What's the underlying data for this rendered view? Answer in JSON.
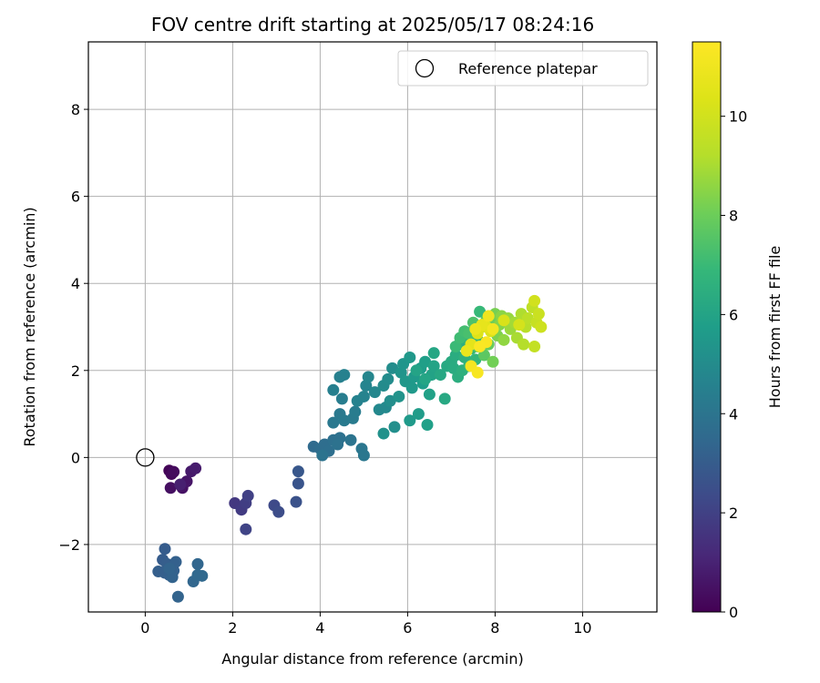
{
  "chart_data": {
    "type": "scatter",
    "title": "FOV centre drift starting at 2025/05/17 08:24:16",
    "xlabel": "Angular distance from reference (arcmin)",
    "ylabel": "Rotation from reference (arcmin)",
    "xlim": [
      -1.3,
      11.7
    ],
    "ylim": [
      -3.55,
      9.55
    ],
    "xticks": [
      0,
      2,
      4,
      6,
      8,
      10
    ],
    "yticks": [
      -2,
      0,
      2,
      4,
      6,
      8
    ],
    "xtick_labels": [
      "0",
      "2",
      "4",
      "6",
      "8",
      "10"
    ],
    "ytick_labels": [
      "−2",
      "0",
      "2",
      "4",
      "6",
      "8"
    ],
    "grid": true,
    "colormap": "viridis",
    "colorbar": {
      "label": "Hours from first FF file",
      "range": [
        0,
        11.5
      ],
      "ticks": [
        0,
        2,
        4,
        6,
        8,
        10
      ],
      "tick_labels": [
        "0",
        "2",
        "4",
        "6",
        "8",
        "10"
      ]
    },
    "legend": {
      "placement": "top-right",
      "label": "Reference platepar"
    },
    "reference_point": {
      "x": 0,
      "y": 0
    },
    "points": [
      {
        "x": 0.55,
        "y": -0.3,
        "h": 0.1
      },
      {
        "x": 0.6,
        "y": -0.38,
        "h": 0.2
      },
      {
        "x": 0.65,
        "y": -0.33,
        "h": 0.3
      },
      {
        "x": 0.58,
        "y": -0.7,
        "h": 0.4
      },
      {
        "x": 0.85,
        "y": -0.7,
        "h": 0.5
      },
      {
        "x": 0.95,
        "y": -0.55,
        "h": 0.6
      },
      {
        "x": 1.05,
        "y": -0.32,
        "h": 0.7
      },
      {
        "x": 1.15,
        "y": -0.25,
        "h": 0.8
      },
      {
        "x": 0.8,
        "y": -0.62,
        "h": 0.9
      },
      {
        "x": 2.05,
        "y": -1.05,
        "h": 1.7
      },
      {
        "x": 2.2,
        "y": -1.2,
        "h": 1.8
      },
      {
        "x": 2.3,
        "y": -1.05,
        "h": 1.9
      },
      {
        "x": 2.35,
        "y": -0.88,
        "h": 2.0
      },
      {
        "x": 2.3,
        "y": -1.65,
        "h": 2.1
      },
      {
        "x": 2.95,
        "y": -1.1,
        "h": 2.3
      },
      {
        "x": 3.05,
        "y": -1.25,
        "h": 2.4
      },
      {
        "x": 3.45,
        "y": -1.02,
        "h": 2.6
      },
      {
        "x": 3.5,
        "y": -0.6,
        "h": 2.7
      },
      {
        "x": 3.5,
        "y": -0.32,
        "h": 2.8
      },
      {
        "x": 0.45,
        "y": -2.1,
        "h": 3.0
      },
      {
        "x": 0.4,
        "y": -2.35,
        "h": 3.0
      },
      {
        "x": 0.5,
        "y": -2.45,
        "h": 3.05
      },
      {
        "x": 0.3,
        "y": -2.62,
        "h": 3.1
      },
      {
        "x": 0.45,
        "y": -2.65,
        "h": 3.1
      },
      {
        "x": 0.55,
        "y": -2.7,
        "h": 3.15
      },
      {
        "x": 0.65,
        "y": -2.6,
        "h": 3.2
      },
      {
        "x": 0.7,
        "y": -2.4,
        "h": 3.2
      },
      {
        "x": 0.62,
        "y": -2.75,
        "h": 3.25
      },
      {
        "x": 0.55,
        "y": -2.55,
        "h": 3.3
      },
      {
        "x": 0.75,
        "y": -3.2,
        "h": 3.3
      },
      {
        "x": 1.1,
        "y": -2.85,
        "h": 3.4
      },
      {
        "x": 1.2,
        "y": -2.45,
        "h": 3.4
      },
      {
        "x": 1.3,
        "y": -2.72,
        "h": 3.5
      },
      {
        "x": 1.2,
        "y": -2.7,
        "h": 3.5
      },
      {
        "x": 3.85,
        "y": 0.25,
        "h": 3.6
      },
      {
        "x": 4.0,
        "y": 0.2,
        "h": 3.65
      },
      {
        "x": 4.1,
        "y": 0.3,
        "h": 3.7
      },
      {
        "x": 4.2,
        "y": 0.15,
        "h": 3.75
      },
      {
        "x": 4.3,
        "y": 0.4,
        "h": 3.8
      },
      {
        "x": 4.45,
        "y": 0.45,
        "h": 3.85
      },
      {
        "x": 4.4,
        "y": 0.3,
        "h": 3.9
      },
      {
        "x": 4.05,
        "y": 0.05,
        "h": 3.95
      },
      {
        "x": 4.7,
        "y": 0.4,
        "h": 4.0
      },
      {
        "x": 4.95,
        "y": 0.2,
        "h": 4.05
      },
      {
        "x": 5.0,
        "y": 0.05,
        "h": 4.1
      },
      {
        "x": 4.3,
        "y": 0.8,
        "h": 4.15
      },
      {
        "x": 4.45,
        "y": 1.0,
        "h": 4.2
      },
      {
        "x": 4.55,
        "y": 0.85,
        "h": 4.25
      },
      {
        "x": 4.75,
        "y": 0.9,
        "h": 4.3
      },
      {
        "x": 4.8,
        "y": 1.05,
        "h": 4.35
      },
      {
        "x": 4.5,
        "y": 1.35,
        "h": 4.4
      },
      {
        "x": 4.3,
        "y": 1.55,
        "h": 4.45
      },
      {
        "x": 4.45,
        "y": 1.85,
        "h": 4.5
      },
      {
        "x": 4.55,
        "y": 1.9,
        "h": 4.55
      },
      {
        "x": 4.85,
        "y": 1.3,
        "h": 4.6
      },
      {
        "x": 5.0,
        "y": 1.4,
        "h": 4.65
      },
      {
        "x": 5.05,
        "y": 1.65,
        "h": 4.7
      },
      {
        "x": 5.1,
        "y": 1.85,
        "h": 4.75
      },
      {
        "x": 5.25,
        "y": 1.5,
        "h": 4.8
      },
      {
        "x": 5.35,
        "y": 1.1,
        "h": 4.85
      },
      {
        "x": 5.5,
        "y": 1.15,
        "h": 4.9
      },
      {
        "x": 5.45,
        "y": 1.65,
        "h": 4.95
      },
      {
        "x": 5.55,
        "y": 1.8,
        "h": 5.0
      },
      {
        "x": 5.65,
        "y": 2.05,
        "h": 5.05
      },
      {
        "x": 5.6,
        "y": 1.3,
        "h": 5.1
      },
      {
        "x": 5.7,
        "y": 0.7,
        "h": 5.15
      },
      {
        "x": 5.45,
        "y": 0.55,
        "h": 5.2
      },
      {
        "x": 5.8,
        "y": 1.4,
        "h": 5.3
      },
      {
        "x": 5.85,
        "y": 1.95,
        "h": 5.35
      },
      {
        "x": 5.9,
        "y": 2.15,
        "h": 5.4
      },
      {
        "x": 5.95,
        "y": 1.75,
        "h": 5.45
      },
      {
        "x": 6.05,
        "y": 2.3,
        "h": 5.5
      },
      {
        "x": 6.1,
        "y": 1.6,
        "h": 5.55
      },
      {
        "x": 6.15,
        "y": 1.85,
        "h": 5.6
      },
      {
        "x": 6.05,
        "y": 0.85,
        "h": 5.6
      },
      {
        "x": 6.25,
        "y": 1.0,
        "h": 5.65
      },
      {
        "x": 6.3,
        "y": 2.05,
        "h": 5.7
      },
      {
        "x": 6.35,
        "y": 1.7,
        "h": 5.75
      },
      {
        "x": 6.4,
        "y": 2.2,
        "h": 5.8
      },
      {
        "x": 6.45,
        "y": 0.75,
        "h": 5.85
      },
      {
        "x": 6.5,
        "y": 1.45,
        "h": 5.9
      },
      {
        "x": 6.55,
        "y": 1.9,
        "h": 5.95
      },
      {
        "x": 6.6,
        "y": 2.1,
        "h": 6.0
      },
      {
        "x": 6.2,
        "y": 2.0,
        "h": 6.0
      },
      {
        "x": 6.4,
        "y": 1.8,
        "h": 6.05
      },
      {
        "x": 6.6,
        "y": 2.4,
        "h": 6.1
      },
      {
        "x": 6.75,
        "y": 1.9,
        "h": 6.15
      },
      {
        "x": 6.85,
        "y": 1.35,
        "h": 6.2
      },
      {
        "x": 6.9,
        "y": 2.1,
        "h": 6.25
      },
      {
        "x": 7.0,
        "y": 2.2,
        "h": 6.3
      },
      {
        "x": 7.05,
        "y": 2.05,
        "h": 6.35
      },
      {
        "x": 7.1,
        "y": 2.35,
        "h": 6.4
      },
      {
        "x": 7.15,
        "y": 1.85,
        "h": 6.45
      },
      {
        "x": 7.2,
        "y": 2.6,
        "h": 6.5
      },
      {
        "x": 7.25,
        "y": 2.0,
        "h": 6.55
      },
      {
        "x": 7.3,
        "y": 2.3,
        "h": 6.6
      },
      {
        "x": 7.35,
        "y": 2.75,
        "h": 6.65
      },
      {
        "x": 7.4,
        "y": 2.1,
        "h": 6.7
      },
      {
        "x": 7.45,
        "y": 2.5,
        "h": 6.75
      },
      {
        "x": 7.5,
        "y": 2.9,
        "h": 6.8
      },
      {
        "x": 7.55,
        "y": 2.25,
        "h": 6.85
      },
      {
        "x": 7.6,
        "y": 2.7,
        "h": 6.9
      },
      {
        "x": 7.65,
        "y": 3.35,
        "h": 6.95
      },
      {
        "x": 7.1,
        "y": 2.55,
        "h": 7.0
      },
      {
        "x": 7.2,
        "y": 2.75,
        "h": 7.1
      },
      {
        "x": 7.3,
        "y": 2.9,
        "h": 7.2
      },
      {
        "x": 7.4,
        "y": 2.85,
        "h": 7.3
      },
      {
        "x": 7.5,
        "y": 3.1,
        "h": 7.4
      },
      {
        "x": 7.6,
        "y": 2.55,
        "h": 7.5
      },
      {
        "x": 7.7,
        "y": 3.0,
        "h": 7.6
      },
      {
        "x": 7.75,
        "y": 2.35,
        "h": 7.7
      },
      {
        "x": 7.8,
        "y": 3.15,
        "h": 7.8
      },
      {
        "x": 7.85,
        "y": 2.6,
        "h": 7.9
      },
      {
        "x": 7.9,
        "y": 3.2,
        "h": 8.0
      },
      {
        "x": 7.95,
        "y": 2.2,
        "h": 8.1
      },
      {
        "x": 8.0,
        "y": 3.3,
        "h": 8.2
      },
      {
        "x": 8.05,
        "y": 2.8,
        "h": 8.3
      },
      {
        "x": 8.1,
        "y": 3.05,
        "h": 8.4
      },
      {
        "x": 8.15,
        "y": 3.25,
        "h": 8.5
      },
      {
        "x": 8.2,
        "y": 2.7,
        "h": 8.6
      },
      {
        "x": 8.3,
        "y": 3.2,
        "h": 8.7
      },
      {
        "x": 8.35,
        "y": 2.95,
        "h": 8.8
      },
      {
        "x": 8.45,
        "y": 3.1,
        "h": 8.9
      },
      {
        "x": 8.5,
        "y": 2.75,
        "h": 9.0
      },
      {
        "x": 8.6,
        "y": 3.3,
        "h": 9.1
      },
      {
        "x": 8.65,
        "y": 2.6,
        "h": 9.2
      },
      {
        "x": 8.7,
        "y": 3.0,
        "h": 9.3
      },
      {
        "x": 8.75,
        "y": 3.2,
        "h": 9.4
      },
      {
        "x": 8.85,
        "y": 3.45,
        "h": 9.5
      },
      {
        "x": 8.9,
        "y": 2.55,
        "h": 9.6
      },
      {
        "x": 8.95,
        "y": 3.1,
        "h": 9.7
      },
      {
        "x": 9.0,
        "y": 3.3,
        "h": 9.8
      },
      {
        "x": 9.05,
        "y": 3.0,
        "h": 9.9
      },
      {
        "x": 8.9,
        "y": 3.6,
        "h": 10.0
      },
      {
        "x": 8.55,
        "y": 3.05,
        "h": 10.1
      },
      {
        "x": 8.2,
        "y": 3.15,
        "h": 10.2
      },
      {
        "x": 7.9,
        "y": 2.9,
        "h": 10.3
      },
      {
        "x": 7.6,
        "y": 2.85,
        "h": 10.4
      },
      {
        "x": 7.8,
        "y": 3.0,
        "h": 10.5
      },
      {
        "x": 7.45,
        "y": 2.6,
        "h": 10.6
      },
      {
        "x": 7.7,
        "y": 3.05,
        "h": 10.7
      },
      {
        "x": 7.35,
        "y": 2.45,
        "h": 10.8
      },
      {
        "x": 7.55,
        "y": 2.95,
        "h": 10.9
      },
      {
        "x": 7.85,
        "y": 3.25,
        "h": 11.0
      },
      {
        "x": 7.95,
        "y": 2.95,
        "h": 11.1
      },
      {
        "x": 7.45,
        "y": 2.1,
        "h": 11.2
      },
      {
        "x": 7.6,
        "y": 1.95,
        "h": 11.3
      },
      {
        "x": 7.8,
        "y": 2.65,
        "h": 11.35
      },
      {
        "x": 7.65,
        "y": 2.55,
        "h": 11.4
      }
    ]
  }
}
